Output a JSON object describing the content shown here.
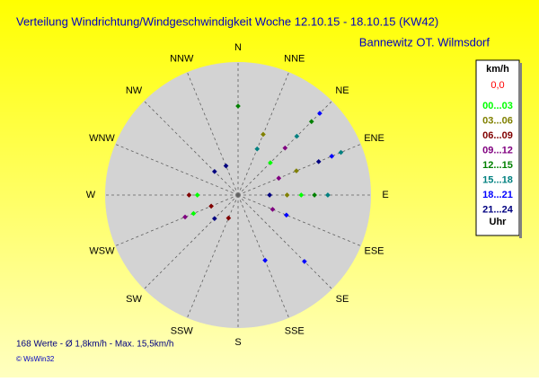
{
  "chart_data": {
    "type": "polar-scatter",
    "title": "Verteilung Windrichtung/Windgeschwindigkeit  Woche 12.10.15 - 18.10.15 (KW42)",
    "subtitle": "Bannewitz OT. Wilmsdorf",
    "directions": [
      "N",
      "NNE",
      "NE",
      "ENE",
      "E",
      "ESE",
      "SE",
      "SSE",
      "S",
      "SSW",
      "SW",
      "WSW",
      "W",
      "WNW",
      "NW",
      "NNW"
    ],
    "direction_degrees": [
      0,
      22.5,
      45,
      67.5,
      90,
      112.5,
      135,
      157.5,
      180,
      202.5,
      225,
      247.5,
      270,
      292.5,
      315,
      337.5
    ],
    "rlim": [
      0,
      16
    ],
    "legend_title": "km/h",
    "calm_label": "0,0",
    "legend_footer": "Uhr",
    "series": [
      {
        "name": "00...03",
        "color": "#00ff00",
        "theta": [
          90,
          45,
          270,
          247.5
        ],
        "r": [
          7.6,
          5.5,
          4.9,
          5.8
        ]
      },
      {
        "name": "03...06",
        "color": "#808000",
        "theta": [
          67.5,
          22.5,
          90
        ],
        "r": [
          7.6,
          7.9,
          5.9
        ]
      },
      {
        "name": "06...09",
        "color": "#800000",
        "theta": [
          270,
          247.5,
          202.5
        ],
        "r": [
          5.9,
          3.5,
          3
        ]
      },
      {
        "name": "09...12",
        "color": "#800080",
        "theta": [
          45,
          67.5,
          112.5,
          247.5
        ],
        "r": [
          8,
          5.3,
          4.5,
          6.9
        ]
      },
      {
        "name": "12...15",
        "color": "#008000",
        "theta": [
          0,
          45,
          90
        ],
        "r": [
          10.7,
          12.5,
          9.2
        ]
      },
      {
        "name": "15...18",
        "color": "#008080",
        "theta": [
          67.5,
          90,
          45,
          22.5
        ],
        "r": [
          13.4,
          10.8,
          10,
          6
        ]
      },
      {
        "name": "18...21",
        "color": "#0000ff",
        "theta": [
          45,
          67.5,
          135,
          112.5,
          157.5
        ],
        "r": [
          13.9,
          12.2,
          11.3,
          6.3,
          8.5
        ]
      },
      {
        "name": "21...24",
        "color": "#000080",
        "theta": [
          67.5,
          90,
          315,
          337.5,
          225
        ],
        "r": [
          10.5,
          3.8,
          4,
          3.8,
          4
        ]
      }
    ],
    "footer": "168 Werte   -   Ø 1,8km/h  -  Max. 15,5km/h",
    "credit": "© WsWin32"
  }
}
